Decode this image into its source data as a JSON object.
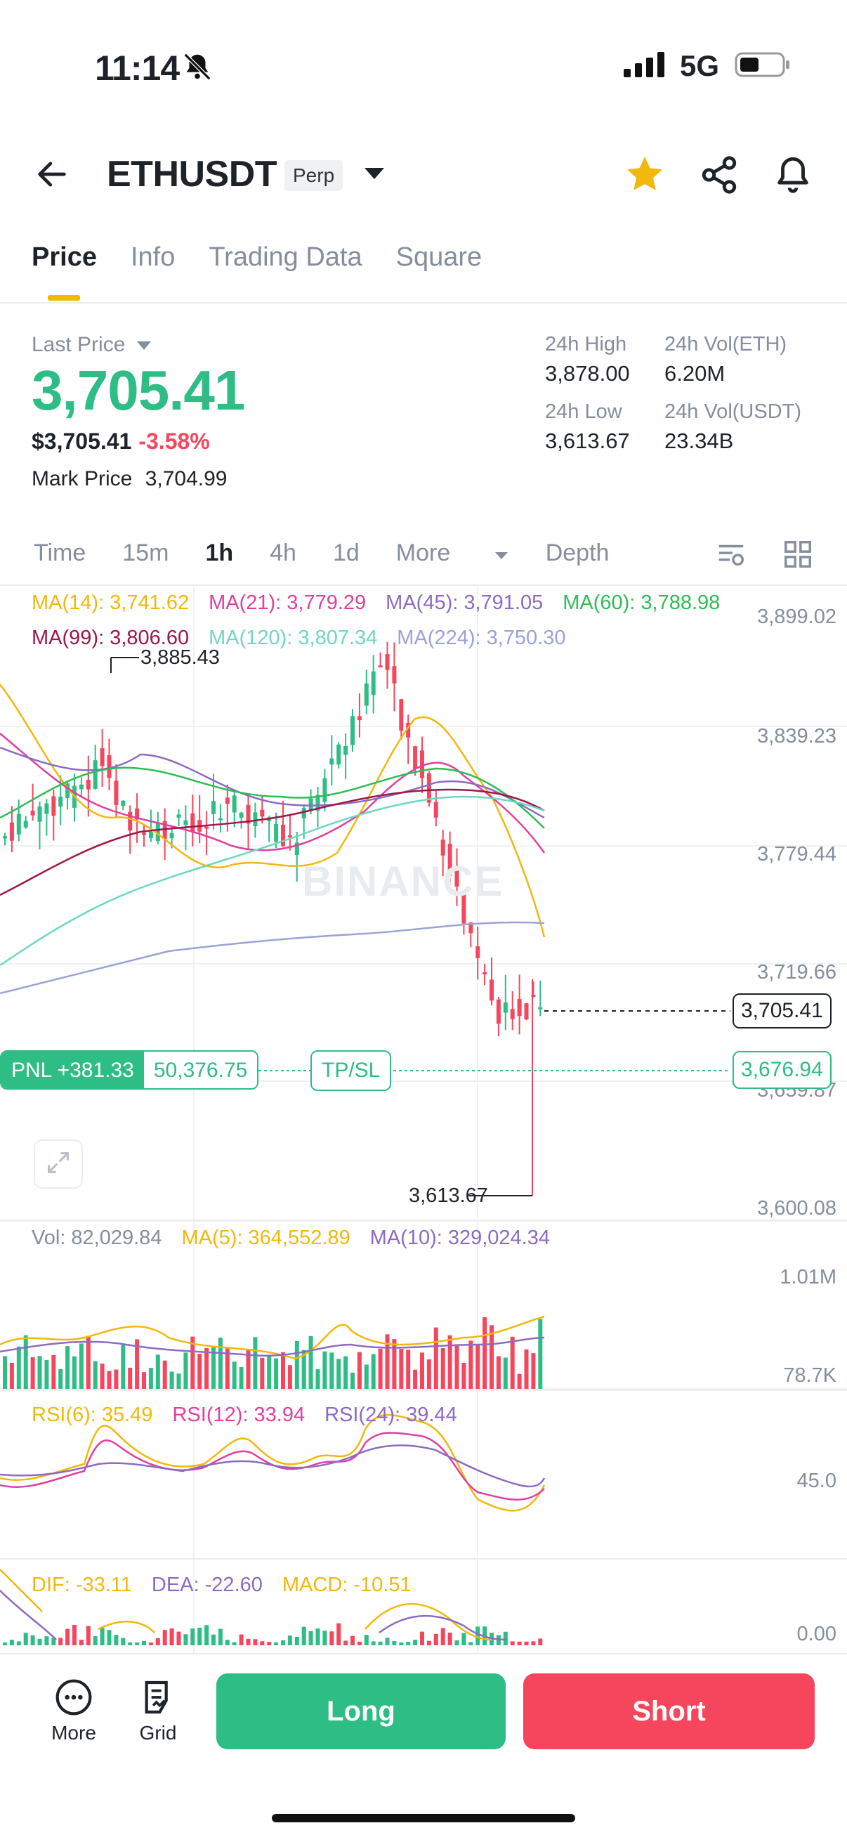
{
  "status_bar": {
    "time": "11:14",
    "network": "5G"
  },
  "header": {
    "symbol": "ETHUSDT",
    "badge": "Perp"
  },
  "tabs": [
    "Price",
    "Info",
    "Trading Data",
    "Square"
  ],
  "price_panel": {
    "last_price_label": "Last Price",
    "last_price": "3,705.41",
    "usd_value": "$3,705.41",
    "change_pct": "-3.58%",
    "mark_price_label": "Mark Price",
    "mark_price": "3,704.99",
    "stats": {
      "high_label": "24h High",
      "high": "3,878.00",
      "low_label": "24h Low",
      "low": "3,613.67",
      "vol_eth_label": "24h Vol(ETH)",
      "vol_eth": "6.20M",
      "vol_usdt_label": "24h Vol(USDT)",
      "vol_usdt": "23.34B"
    }
  },
  "intervals": {
    "items": [
      "Time",
      "15m",
      "1h",
      "4h",
      "1d",
      "More",
      "Depth"
    ],
    "active": "1h"
  },
  "main_chart": {
    "ma_labels": [
      {
        "text": "MA(14): 3,741.62",
        "color": "#f0b90b"
      },
      {
        "text": "MA(21): 3,779.29",
        "color": "#e040a0"
      },
      {
        "text": "MA(45): 3,791.05",
        "color": "#8c6bc2"
      },
      {
        "text": "MA(60): 3,788.98",
        "color": "#2ebd55"
      },
      {
        "text": "MA(99): 3,806.60",
        "color": "#a0164a"
      },
      {
        "text": "MA(120): 3,807.34",
        "color": "#6fd6c4"
      },
      {
        "text": "MA(224): 3,750.30",
        "color": "#9aa2d8"
      }
    ],
    "y_axis": [
      "3,899.02",
      "3,839.23",
      "3,779.44",
      "3,719.66",
      "3,659.87",
      "3,600.08"
    ],
    "high_marker": "3,885.43",
    "low_marker": "3,613.67",
    "current_price_tag": "3,705.41",
    "position_price_tag": "3,676.94",
    "pnl_label": "PNL +381.33",
    "pnl_amount": "50,376.75",
    "tpsl_label": "TP/SL",
    "watermark": "BINANCE"
  },
  "volume_panel": {
    "vol": "Vol: 82,029.84",
    "ma5": "MA(5): 364,552.89",
    "ma10": "MA(10): 329,024.34",
    "y_top": "1.01M",
    "y_bottom": "78.7K"
  },
  "rsi_panel": {
    "rsi6": "RSI(6): 35.49",
    "rsi12": "RSI(12): 33.94",
    "rsi24": "RSI(24): 39.44",
    "y_mid": "45.0"
  },
  "macd_panel": {
    "dif": "DIF: -33.11",
    "dea": "DEA: -22.60",
    "macd": "MACD: -10.51",
    "y_zero": "0.00"
  },
  "bottom_bar": {
    "more_label": "More",
    "grid_label": "Grid",
    "long_label": "Long",
    "short_label": "Short"
  },
  "colors": {
    "up": "#2ebd85",
    "down": "#f6465d",
    "accent": "#f0b90b"
  }
}
